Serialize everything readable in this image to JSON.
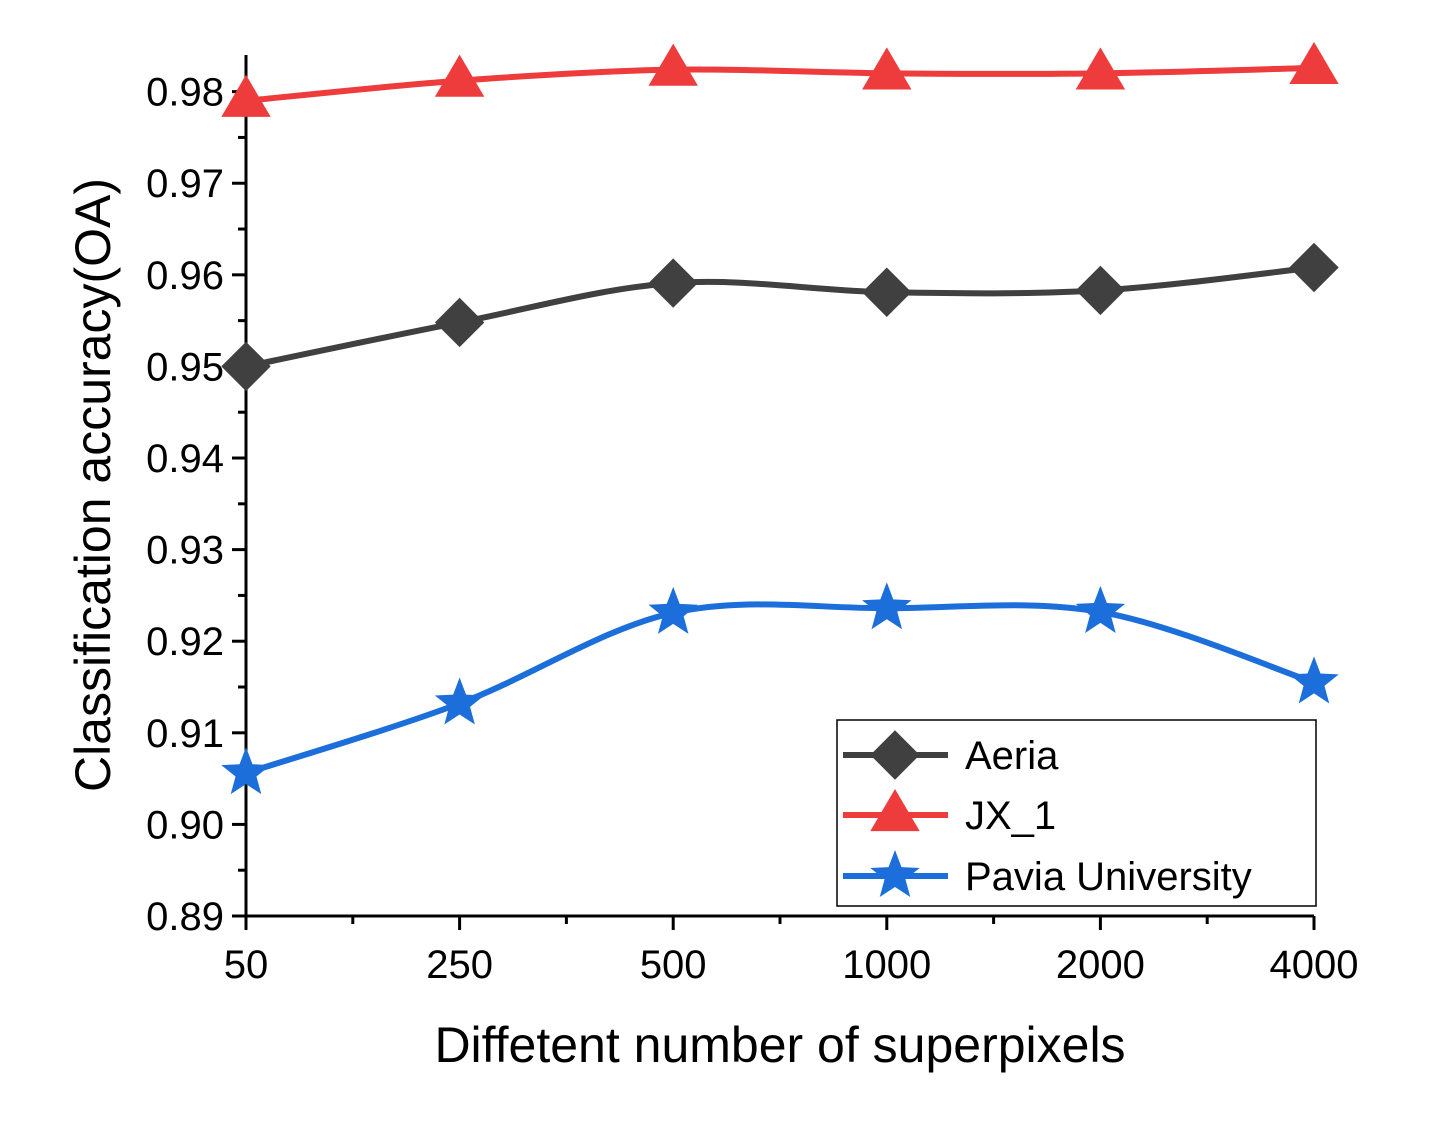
{
  "chart_data": {
    "type": "line",
    "title": "",
    "xlabel": "Diffetent number of superpixels",
    "ylabel": "Classification accuracy(OA)",
    "categories": [
      "50",
      "250",
      "500",
      "1000",
      "2000",
      "4000"
    ],
    "ylim": [
      0.89,
      0.984
    ],
    "yticks": [
      "0.89",
      "0.90",
      "0.91",
      "0.92",
      "0.93",
      "0.94",
      "0.95",
      "0.96",
      "0.97",
      "0.98"
    ],
    "legend_position": "bottom-right",
    "series": [
      {
        "name": "Aeria",
        "marker": "diamond",
        "color": "#404040",
        "values": [
          0.95,
          0.9548,
          0.9591,
          0.9581,
          0.9583,
          0.9608
        ]
      },
      {
        "name": "JX_1",
        "marker": "triangle",
        "color": "#ee3b3b",
        "values": [
          0.979,
          0.9812,
          0.9824,
          0.982,
          0.982,
          0.9826
        ]
      },
      {
        "name": "Pavia University",
        "marker": "star",
        "color": "#1c6fdb",
        "values": [
          0.9056,
          0.9132,
          0.9231,
          0.9236,
          0.9232,
          0.9155
        ]
      }
    ]
  }
}
